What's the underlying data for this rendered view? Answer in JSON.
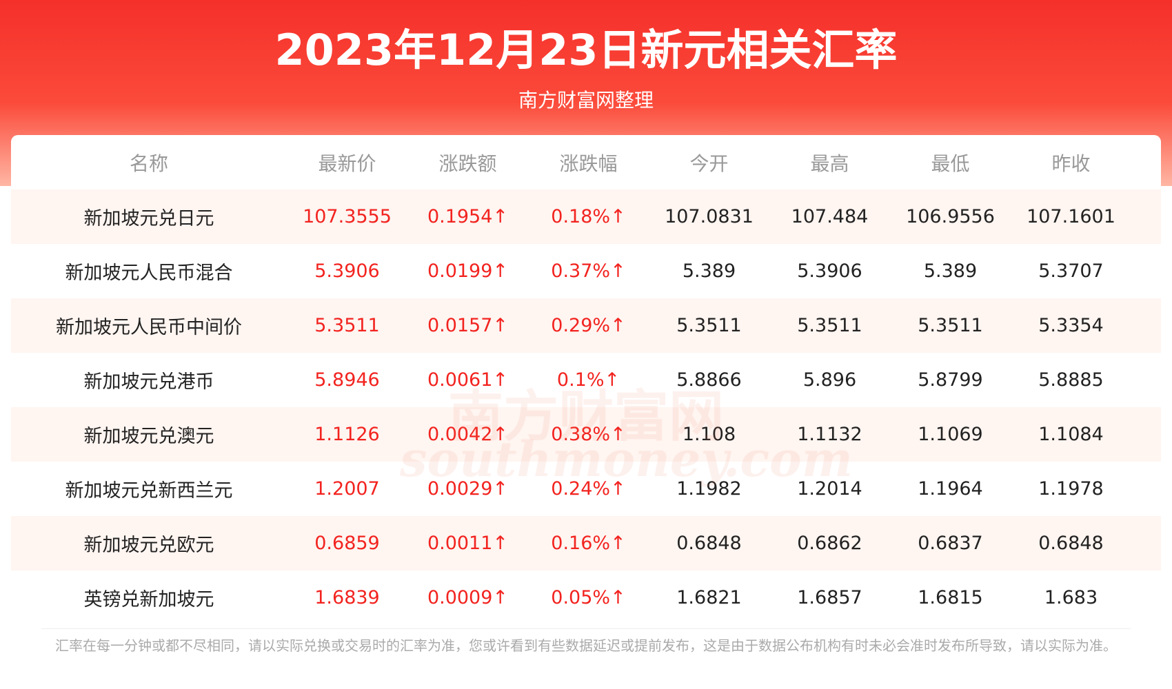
{
  "header": {
    "title": "2023年12月23日新元相关汇率",
    "subtitle": "南方财富网整理"
  },
  "watermark": {
    "cn": "南方财富网",
    "en": "southmoney.com"
  },
  "table": {
    "columns": [
      "名称",
      "最新价",
      "涨跌额",
      "涨跌幅",
      "今开",
      "最高",
      "最低",
      "昨收"
    ],
    "rows": [
      [
        "新加坡元兑日元",
        "107.3555",
        "0.1954↑",
        "0.18%↑",
        "107.0831",
        "107.484",
        "106.9556",
        "107.1601"
      ],
      [
        "新加坡元人民币混合",
        "5.3906",
        "0.0199↑",
        "0.37%↑",
        "5.389",
        "5.3906",
        "5.389",
        "5.3707"
      ],
      [
        "新加坡元人民币中间价",
        "5.3511",
        "0.0157↑",
        "0.29%↑",
        "5.3511",
        "5.3511",
        "5.3511",
        "5.3354"
      ],
      [
        "新加坡元兑港币",
        "5.8946",
        "0.0061↑",
        "0.1%↑",
        "5.8866",
        "5.896",
        "5.8799",
        "5.8885"
      ],
      [
        "新加坡元兑澳元",
        "1.1126",
        "0.0042↑",
        "0.38%↑",
        "1.108",
        "1.1132",
        "1.1069",
        "1.1084"
      ],
      [
        "新加坡元兑新西兰元",
        "1.2007",
        "0.0029↑",
        "0.24%↑",
        "1.1982",
        "1.2014",
        "1.1964",
        "1.1978"
      ],
      [
        "新加坡元兑欧元",
        "0.6859",
        "0.0011↑",
        "0.16%↑",
        "0.6848",
        "0.6862",
        "0.6837",
        "0.6848"
      ],
      [
        "英镑兑新加坡元",
        "1.6839",
        "0.0009↑",
        "0.05%↑",
        "1.6821",
        "1.6857",
        "1.6815",
        "1.683"
      ]
    ]
  },
  "footer": {
    "note": "汇率在每一分钟或都不尽相同，请以实际兑换或交易时的汇率为准，您或许看到有些数据延迟或提前发布，这是由于数据公布机构有时未必会准时发布所导致，请以实际为准。"
  }
}
